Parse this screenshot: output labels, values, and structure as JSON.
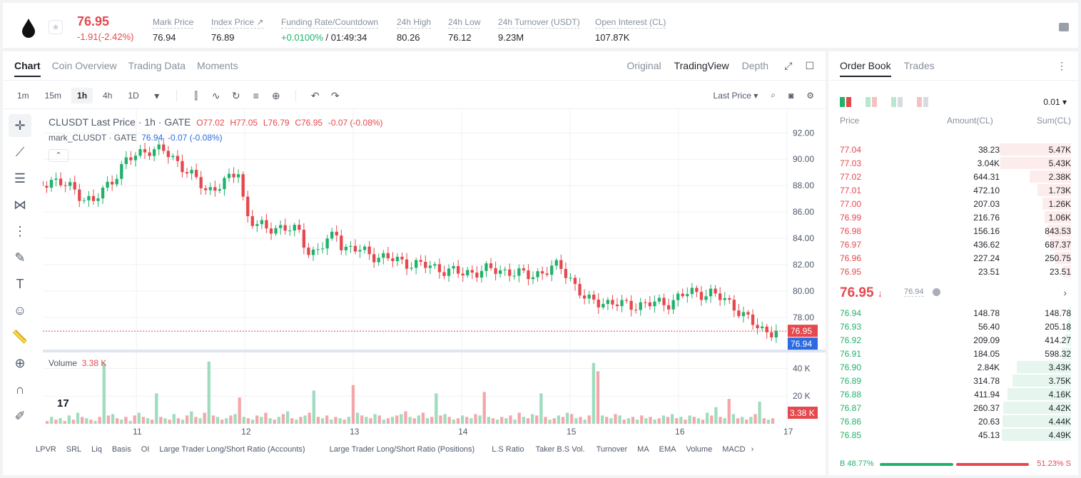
{
  "header": {
    "last_price": "76.95",
    "change": "-1.91(-2.42%)",
    "stats": [
      {
        "label": "Mark Price",
        "value": "76.94"
      },
      {
        "label": "Index Price ↗",
        "value": "76.89"
      },
      {
        "label": "Funding Rate/Countdown",
        "value_green": "+0.0100%",
        "value": " / 01:49:34"
      },
      {
        "label": "24h High",
        "value": "80.26"
      },
      {
        "label": "24h Low",
        "value": "76.12"
      },
      {
        "label": "24h Turnover (USDT)",
        "value": "9.23M"
      },
      {
        "label": "Open Interest (CL)",
        "value": "107.87K"
      }
    ]
  },
  "chart_tabs": [
    "Chart",
    "Coin Overview",
    "Trading Data",
    "Moments"
  ],
  "view_tabs": [
    "Original",
    "TradingView",
    "Depth"
  ],
  "intervals": [
    "1m",
    "15m",
    "1h",
    "4h",
    "1D"
  ],
  "price_type": "Last Price",
  "legend": {
    "symbol": "CLUSDT Last Price · 1h · GATE",
    "o": "O77.02",
    "h": "H77.05",
    "l": "L76.79",
    "c": "C76.95",
    "chg": "-0.07 (-0.08%)",
    "mark_label": "mark_CLUSDT · GATE",
    "mark_value": "76.94",
    "mark_chg": "-0.07 (-0.08%)"
  },
  "volume_legend": {
    "label": "Volume",
    "value": "3.38 K"
  },
  "indicators": [
    "LPVR",
    "SRL",
    "Liq",
    "Basis",
    "OI",
    "Large Trader Long/Short Ratio (Accounts)",
    "Large Trader Long/Short Ratio (Positions)",
    "L.S Ratio",
    "Taker B.S Vol.",
    "Turnover",
    "MA",
    "EMA",
    "Volume",
    "MACD"
  ],
  "chart_data": {
    "type": "candlestick",
    "symbol": "CLUSDT",
    "interval": "1h",
    "price_axis_ticks": [
      "92.00",
      "90.00",
      "88.00",
      "86.00",
      "84.00",
      "82.00",
      "80.00",
      "78.00"
    ],
    "ylim": [
      76.2,
      93.1
    ],
    "volume_axis_ticks": [
      "40 K",
      "20 K"
    ],
    "volume_ylim": [
      0,
      49
    ],
    "x_ticks": [
      "11",
      "12",
      "13",
      "14",
      "15",
      "16",
      "17"
    ],
    "x_tick_days": [
      11,
      12,
      13,
      14,
      15,
      16,
      17
    ],
    "last_price_label": "76.95",
    "mark_price_label": "76.94",
    "volume_label": "3.38 K",
    "price_path_points": [
      [
        10.0,
        87.4
      ],
      [
        10.2,
        88.5
      ],
      [
        10.4,
        87.8
      ],
      [
        10.5,
        87.2
      ],
      [
        10.6,
        86.7
      ],
      [
        10.75,
        88.2
      ],
      [
        10.9,
        89.8
      ],
      [
        11.1,
        90.8
      ],
      [
        11.25,
        90.6
      ],
      [
        11.4,
        89.7
      ],
      [
        11.5,
        88.8
      ],
      [
        11.65,
        87.6
      ],
      [
        11.85,
        88.4
      ],
      [
        11.95,
        89.2
      ],
      [
        12.0,
        86.0
      ],
      [
        12.1,
        85.0
      ],
      [
        12.2,
        84.7
      ],
      [
        12.35,
        84.9
      ],
      [
        12.5,
        84.4
      ],
      [
        12.6,
        82.8
      ],
      [
        12.75,
        83.6
      ],
      [
        12.85,
        84.5
      ],
      [
        12.9,
        83.3
      ],
      [
        13.0,
        83.2
      ],
      [
        13.2,
        82.7
      ],
      [
        13.4,
        82.3
      ],
      [
        13.6,
        82.0
      ],
      [
        13.8,
        81.7
      ],
      [
        14.0,
        81.3
      ],
      [
        14.2,
        81.6
      ],
      [
        14.45,
        81.5
      ],
      [
        14.6,
        81.1
      ],
      [
        14.8,
        81.6
      ],
      [
        14.9,
        81.9
      ],
      [
        15.0,
        81.0
      ],
      [
        15.15,
        79.2
      ],
      [
        15.3,
        79.2
      ],
      [
        15.5,
        78.9
      ],
      [
        15.7,
        79.0
      ],
      [
        15.9,
        79.1
      ],
      [
        16.1,
        79.9
      ],
      [
        16.3,
        79.8
      ],
      [
        16.5,
        79.0
      ],
      [
        16.6,
        78.1
      ],
      [
        16.75,
        77.1
      ],
      [
        16.9,
        76.9
      ]
    ],
    "volume_heights": [
      2,
      5,
      3,
      4,
      2,
      6,
      3,
      8,
      5,
      4,
      3,
      2,
      5,
      44,
      6,
      7,
      4,
      3,
      5,
      2,
      6,
      8,
      5,
      4,
      3,
      22,
      5,
      4,
      3,
      7,
      4,
      3,
      6,
      9,
      5,
      4,
      8,
      45,
      6,
      5,
      3,
      4,
      6,
      7,
      19,
      5,
      4,
      3,
      6,
      5,
      8,
      4,
      3,
      5,
      7,
      9,
      4,
      3,
      5,
      6,
      8,
      24,
      5,
      4,
      6,
      3,
      5,
      4,
      3,
      5,
      28,
      8,
      6,
      5,
      4,
      7,
      6,
      3,
      4,
      5,
      6,
      7,
      9,
      5,
      4,
      6,
      8,
      4,
      5,
      22,
      6,
      7,
      5,
      3,
      4,
      6,
      5,
      4,
      7,
      6,
      23,
      5,
      4,
      3,
      5,
      4,
      6,
      3,
      8,
      5,
      4,
      7,
      6,
      22,
      5,
      3,
      4,
      6,
      5,
      8,
      7,
      4,
      5,
      3,
      6,
      44,
      38,
      6,
      5,
      4,
      7,
      6,
      3,
      4,
      5,
      3,
      6,
      4,
      5,
      3,
      4,
      6,
      5,
      7,
      4,
      5,
      3,
      6,
      5,
      4,
      3,
      8,
      6,
      12,
      5,
      4,
      18,
      7,
      4,
      5,
      3,
      5,
      7,
      16,
      4,
      3,
      4
    ],
    "volume_red_every": 2
  },
  "orderbook": {
    "tabs": [
      "Order Book",
      "Trades"
    ],
    "precision": "0.01",
    "headers": [
      "Price",
      "Amount(CL)",
      "Sum(CL)"
    ],
    "asks": [
      {
        "price": "77.04",
        "amount": "38.23",
        "sum": "5.47K",
        "depth": 0.95
      },
      {
        "price": "77.03",
        "amount": "3.04K",
        "sum": "5.43K",
        "depth": 0.94
      },
      {
        "price": "77.02",
        "amount": "644.31",
        "sum": "2.38K",
        "depth": 0.55
      },
      {
        "price": "77.01",
        "amount": "472.10",
        "sum": "1.73K",
        "depth": 0.45
      },
      {
        "price": "77.00",
        "amount": "207.03",
        "sum": "1.26K",
        "depth": 0.38
      },
      {
        "price": "76.99",
        "amount": "216.76",
        "sum": "1.06K",
        "depth": 0.35
      },
      {
        "price": "76.98",
        "amount": "156.16",
        "sum": "843.53",
        "depth": 0.31
      },
      {
        "price": "76.97",
        "amount": "436.62",
        "sum": "687.37",
        "depth": 0.28
      },
      {
        "price": "76.96",
        "amount": "227.24",
        "sum": "250.75",
        "depth": 0.22
      },
      {
        "price": "76.95",
        "amount": "23.51",
        "sum": "23.51",
        "depth": 0.1
      }
    ],
    "mid_price": "76.95",
    "mid_mark": "76.94",
    "bids": [
      {
        "price": "76.94",
        "amount": "148.78",
        "sum": "148.78",
        "depth": 0.03
      },
      {
        "price": "76.93",
        "amount": "56.40",
        "sum": "205.18",
        "depth": 0.05
      },
      {
        "price": "76.92",
        "amount": "209.09",
        "sum": "414.27",
        "depth": 0.08
      },
      {
        "price": "76.91",
        "amount": "184.05",
        "sum": "598.32",
        "depth": 0.12
      },
      {
        "price": "76.90",
        "amount": "2.84K",
        "sum": "3.43K",
        "depth": 0.72
      },
      {
        "price": "76.89",
        "amount": "314.78",
        "sum": "3.75K",
        "depth": 0.78
      },
      {
        "price": "76.88",
        "amount": "411.94",
        "sum": "4.16K",
        "depth": 0.85
      },
      {
        "price": "76.87",
        "amount": "260.37",
        "sum": "4.42K",
        "depth": 0.9
      },
      {
        "price": "76.86",
        "amount": "20.63",
        "sum": "4.44K",
        "depth": 0.91
      },
      {
        "price": "76.85",
        "amount": "45.13",
        "sum": "4.49K",
        "depth": 0.92
      }
    ],
    "buy_ratio": "B 48.77%",
    "sell_ratio": "51.23% S"
  },
  "colors": {
    "up": "#20b26c",
    "down": "#e5484d",
    "mark": "#2d6cdf"
  }
}
